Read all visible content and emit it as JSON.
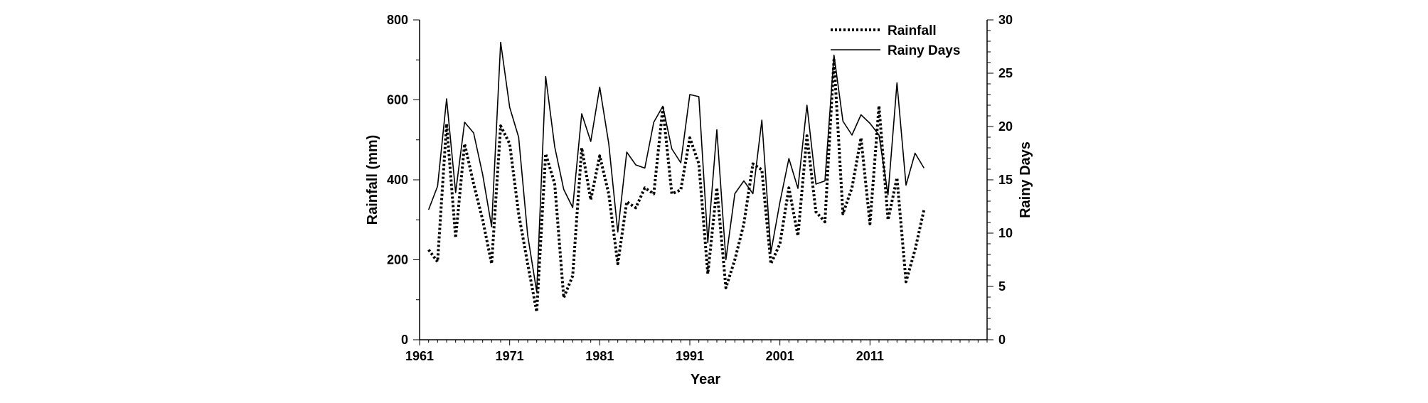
{
  "chart_data": {
    "type": "line",
    "xlabel": "Year",
    "ylabel_left": "Rainfall (mm)",
    "ylabel_right": "Rainy Days",
    "xlim": [
      1961,
      2024
    ],
    "ylim_left": [
      0,
      800
    ],
    "ylim_right": [
      0,
      30
    ],
    "x_ticks": [
      1961,
      1971,
      1981,
      1991,
      2001,
      2011
    ],
    "y_ticks_left": [
      0,
      200,
      400,
      600,
      800
    ],
    "y_ticks_right": [
      0,
      5,
      10,
      15,
      20,
      25,
      30
    ],
    "grid": false,
    "legend_position": "top-right",
    "colors": {
      "line": "#000000"
    },
    "x": [
      1962,
      1963,
      1964,
      1965,
      1966,
      1967,
      1968,
      1969,
      1970,
      1971,
      1972,
      1973,
      1974,
      1975,
      1976,
      1977,
      1978,
      1979,
      1980,
      1981,
      1982,
      1983,
      1984,
      1985,
      1986,
      1987,
      1988,
      1989,
      1990,
      1991,
      1992,
      1993,
      1994,
      1995,
      1996,
      1997,
      1998,
      1999,
      2000,
      2001,
      2002,
      2003,
      2004,
      2005,
      2006,
      2007,
      2008,
      2009,
      2010,
      2011,
      2012,
      2013,
      2014,
      2015,
      2016,
      2017
    ],
    "series": [
      {
        "name": "Rainfall",
        "axis": "left",
        "style": "dotted",
        "values": [
          225,
          195,
          540,
          255,
          490,
          390,
          300,
          190,
          535,
          490,
          315,
          190,
          70,
          465,
          390,
          105,
          160,
          480,
          350,
          460,
          365,
          190,
          345,
          330,
          380,
          365,
          580,
          365,
          375,
          505,
          440,
          165,
          380,
          130,
          200,
          290,
          440,
          425,
          190,
          240,
          380,
          260,
          510,
          320,
          295,
          700,
          315,
          380,
          505,
          290,
          585,
          300,
          405,
          145,
          225,
          325
        ]
      },
      {
        "name": "Rainy Days",
        "axis": "right",
        "style": "solid",
        "values": [
          12.2,
          14.4,
          22.6,
          13.8,
          20.4,
          19.4,
          15.5,
          10.6,
          27.9,
          21.8,
          19,
          9.8,
          4.5,
          24.7,
          18.1,
          14.1,
          12.4,
          21.2,
          18.6,
          23.7,
          18.4,
          10.1,
          17.6,
          16.4,
          16.1,
          20.4,
          21.9,
          17.9,
          16.6,
          23,
          22.8,
          9.1,
          19.7,
          7.5,
          13.7,
          14.9,
          13.7,
          20.6,
          8.2,
          12.9,
          17,
          14.2,
          22,
          14.6,
          14.9,
          26.7,
          20.5,
          19.2,
          21.1,
          20.3,
          19.2,
          13.6,
          24.1,
          14.5,
          17.5,
          16.1
        ]
      }
    ]
  }
}
